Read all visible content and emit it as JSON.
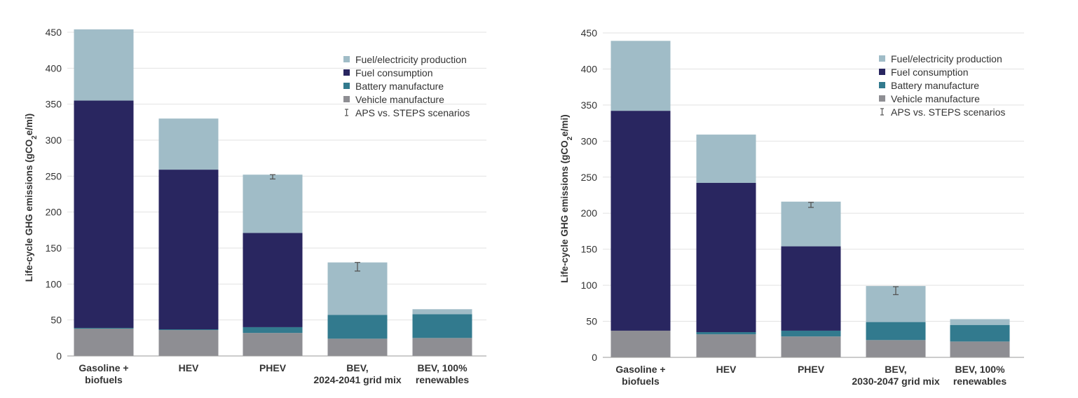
{
  "colors": {
    "fuel_electricity_production": "#a0bcc7",
    "fuel_consumption": "#292660",
    "battery_manufacture": "#327a8e",
    "vehicle_manufacture": "#8e8e93",
    "grid": "#e2e2e2",
    "axis": "#555555",
    "text": "#333333"
  },
  "legend": {
    "items": [
      {
        "label": "Fuel/electricity production",
        "key": "fuel_electricity_production",
        "kind": "box"
      },
      {
        "label": "Fuel consumption",
        "key": "fuel_consumption",
        "kind": "box"
      },
      {
        "label": "Battery manufacture",
        "key": "battery_manufacture",
        "kind": "box"
      },
      {
        "label": "Vehicle manufacture",
        "key": "vehicle_manufacture",
        "kind": "box"
      },
      {
        "label": "APS vs. STEPS scenarios",
        "key": "errorbar",
        "kind": "errorbar"
      }
    ]
  },
  "chart_data": [
    {
      "type": "bar",
      "stacked": true,
      "ylabel": "Life-cycle GHG emissions (gCO2e/mi)",
      "ylim": [
        0,
        450
      ],
      "yticks": [
        0,
        50,
        100,
        150,
        200,
        250,
        300,
        350,
        400,
        450
      ],
      "grid": true,
      "legend_position": "top-right",
      "categories": [
        [
          "Gasoline +",
          "biofuels"
        ],
        [
          "HEV"
        ],
        [
          "PHEV"
        ],
        [
          "BEV,",
          "2024-2041 grid mix"
        ],
        [
          "BEV, 100%",
          "renewables"
        ]
      ],
      "series": [
        {
          "name": "Vehicle manufacture",
          "key": "vehicle_manufacture",
          "values": [
            38,
            36,
            32,
            24,
            25
          ]
        },
        {
          "name": "Battery manufacture",
          "key": "battery_manufacture",
          "values": [
            1,
            1,
            8,
            33,
            33
          ]
        },
        {
          "name": "Fuel consumption",
          "key": "fuel_consumption",
          "values": [
            316,
            222,
            131,
            0,
            0
          ]
        },
        {
          "name": "Fuel/electricity production",
          "key": "fuel_electricity_production",
          "values": [
            99,
            71,
            81,
            73,
            7
          ]
        }
      ],
      "error_bars": [
        null,
        null,
        {
          "low": 246,
          "high": 252
        },
        {
          "low": 118,
          "high": 130
        },
        null
      ]
    },
    {
      "type": "bar",
      "stacked": true,
      "ylabel": "Life-cycle GHG emissions (gCO2e/mi)",
      "ylim": [
        0,
        450
      ],
      "yticks": [
        0,
        50,
        100,
        150,
        200,
        250,
        300,
        350,
        400,
        450
      ],
      "grid": true,
      "legend_position": "top-right",
      "categories": [
        [
          "Gasoline +",
          "biofuels"
        ],
        [
          "HEV"
        ],
        [
          "PHEV"
        ],
        [
          "BEV,",
          "2030-2047 grid mix"
        ],
        [
          "BEV, 100%",
          "renewables"
        ]
      ],
      "series": [
        {
          "name": "Vehicle manufacture",
          "key": "vehicle_manufacture",
          "values": [
            37,
            32,
            29,
            24,
            22
          ]
        },
        {
          "name": "Battery manufacture",
          "key": "battery_manufacture",
          "values": [
            0,
            3,
            8,
            25,
            23
          ]
        },
        {
          "name": "Fuel consumption",
          "key": "fuel_consumption",
          "values": [
            305,
            207,
            117,
            0,
            0
          ]
        },
        {
          "name": "Fuel/electricity production",
          "key": "fuel_electricity_production",
          "values": [
            97,
            67,
            62,
            50,
            8
          ]
        }
      ],
      "error_bars": [
        null,
        null,
        {
          "low": 208,
          "high": 215
        },
        {
          "low": 87,
          "high": 98
        },
        null
      ]
    }
  ]
}
